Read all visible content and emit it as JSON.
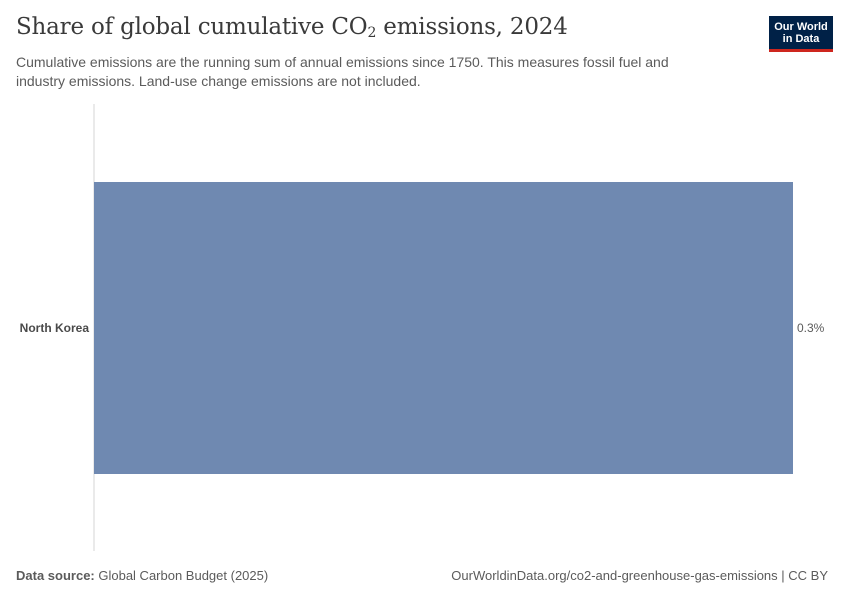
{
  "header": {
    "title_main": "Share of global cumulative CO",
    "title_sub": "2",
    "title_tail": " emissions, 2024",
    "subtitle": "Cumulative emissions are the running sum of annual emissions since 1750. This measures fossil fuel and industry emissions. Land-use change emissions are not included."
  },
  "logo": {
    "line1": "Our World",
    "line2": "in Data"
  },
  "chart_data": {
    "type": "bar",
    "orientation": "horizontal",
    "categories": [
      "North Korea"
    ],
    "values": [
      0.3
    ],
    "value_labels": [
      "0.3%"
    ],
    "unit": "%",
    "xlim": [
      0,
      0.3
    ],
    "grid": false,
    "bar_color": "#6f89b1"
  },
  "footer": {
    "source_label": "Data source:",
    "source_value": " Global Carbon Budget (2025)",
    "url": "OurWorldinData.org/co2-and-greenhouse-gas-emissions | CC BY"
  }
}
